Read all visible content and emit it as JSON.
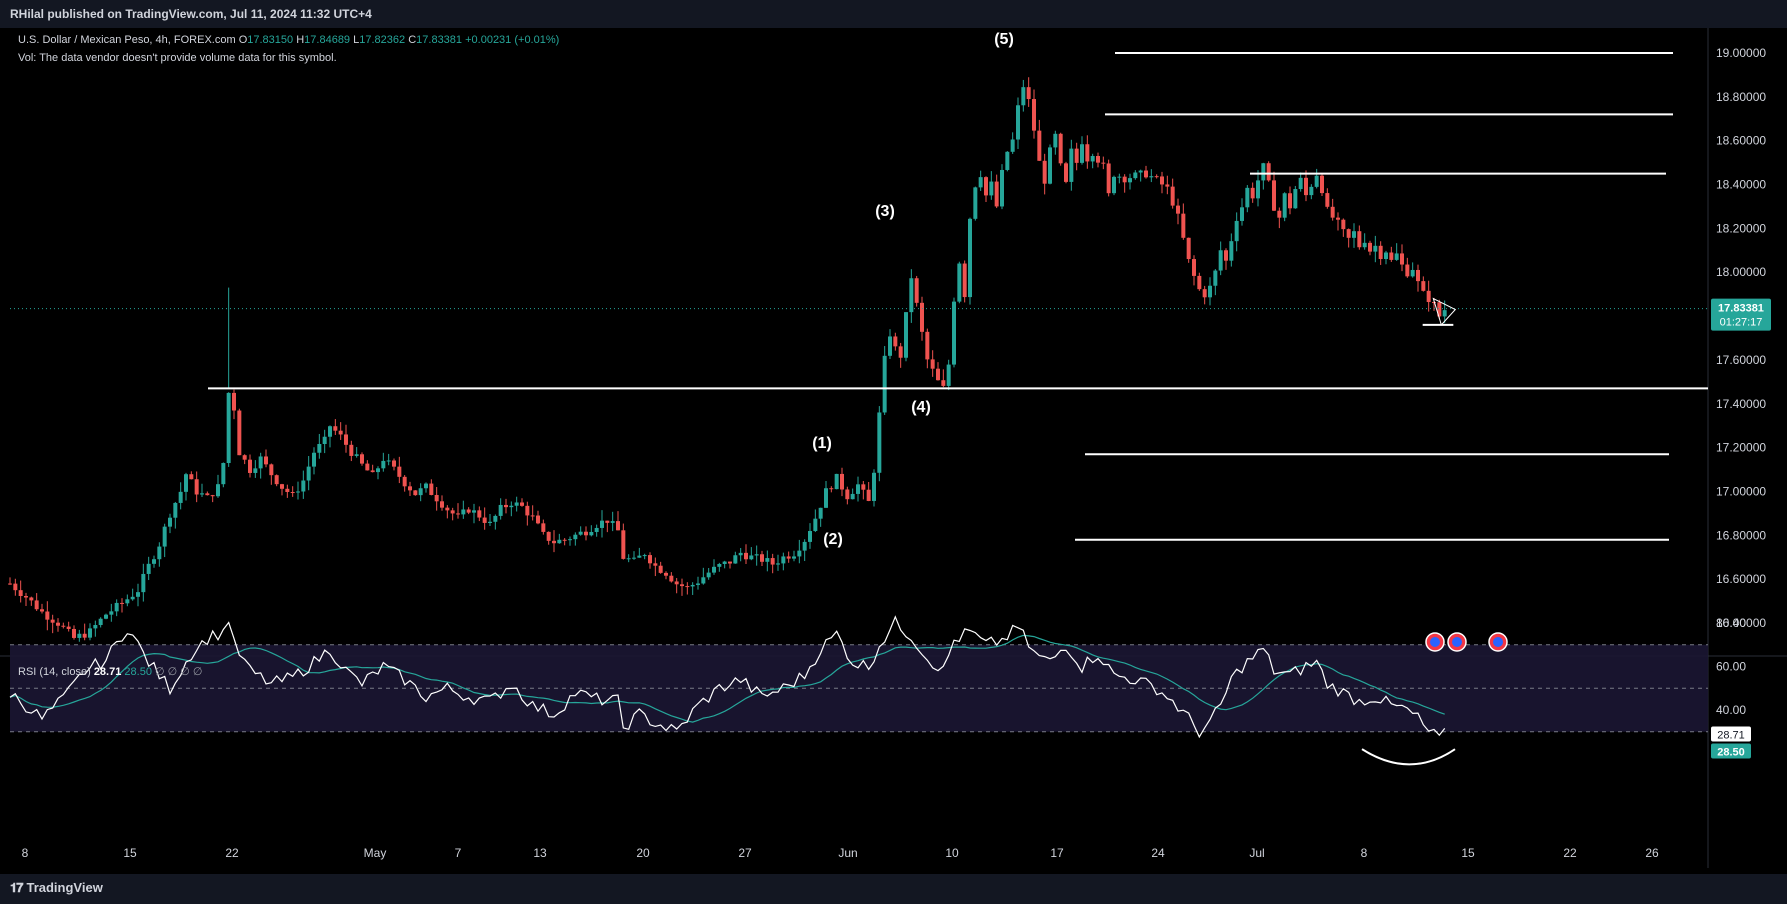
{
  "header": {
    "publisher": "RHilal published on TradingView.com, Jul 11, 2024 11:32 UTC+4"
  },
  "legend": {
    "symbol": "U.S. Dollar / Mexican Peso, 4h, FOREX.com",
    "o_label": "O",
    "o_value": "17.83150",
    "h_label": "H",
    "h_value": "17.84689",
    "l_label": "L",
    "l_value": "17.82362",
    "c_label": "C",
    "c_value": "17.83381",
    "change": "+0.00231 (+0.01%)",
    "vol_note": "Vol: The data vendor doesn't provide volume data for this symbol."
  },
  "rsi_legend": {
    "label": "RSI (14, close)",
    "value": "28.71",
    "ma_value": "28.50",
    "empty": "∅ ∅ ∅ ∅"
  },
  "last_price": {
    "price": "17.83381",
    "countdown": "01:27:17"
  },
  "rsi_tags": {
    "rsi": "28.71",
    "ma": "28.50"
  },
  "footer": {
    "brand": "TradingView"
  },
  "colors": {
    "up": "#26a69a",
    "down": "#ef5350",
    "line": "#ffffff",
    "rsi_line": "#ffffff",
    "rsi_ma": "#26a69a",
    "price_tag": "#26a69a",
    "rsi_band": "#1b1633"
  },
  "icons": [
    "tradingview-logo-icon",
    "us-flag-event-icon"
  ],
  "chart_data": {
    "type": "candlestick",
    "title": "U.S. Dollar / Mexican Peso, 4h, FOREX.com",
    "ylim": [
      16.26,
      19.2
    ],
    "y_ticks": [
      "19.00000",
      "18.80000",
      "18.60000",
      "18.40000",
      "18.20000",
      "18.00000",
      "17.60000",
      "17.40000",
      "17.20000",
      "17.00000",
      "16.80000",
      "16.60000",
      "16.40000"
    ],
    "x_ticks": [
      "8",
      "15",
      "22",
      "May",
      "7",
      "13",
      "20",
      "27",
      "Jun",
      "10",
      "17",
      "24",
      "Jul",
      "8",
      "15",
      "22",
      "26"
    ],
    "close_path": [
      [
        0,
        16.58
      ],
      [
        3,
        16.52
      ],
      [
        6,
        16.45
      ],
      [
        9,
        16.4
      ],
      [
        12,
        16.33
      ],
      [
        15,
        16.36
      ],
      [
        18,
        16.44
      ],
      [
        21,
        16.49
      ],
      [
        24,
        16.55
      ],
      [
        26,
        16.66
      ],
      [
        28,
        16.76
      ],
      [
        30,
        16.9
      ],
      [
        32,
        17.0
      ],
      [
        33,
        17.08
      ],
      [
        35,
        17.0
      ],
      [
        37,
        16.97
      ],
      [
        39,
        17.02
      ],
      [
        40,
        17.13
      ],
      [
        41,
        17.45
      ],
      [
        42,
        17.38
      ],
      [
        43,
        17.18
      ],
      [
        45,
        17.1
      ],
      [
        47,
        17.15
      ],
      [
        49,
        17.08
      ],
      [
        51,
        17.02
      ],
      [
        53,
        16.98
      ],
      [
        55,
        17.05
      ],
      [
        57,
        17.18
      ],
      [
        59,
        17.23
      ],
      [
        60,
        17.3
      ],
      [
        62,
        17.25
      ],
      [
        64,
        17.18
      ],
      [
        66,
        17.12
      ],
      [
        68,
        17.07
      ],
      [
        70,
        17.15
      ],
      [
        72,
        17.1
      ],
      [
        74,
        17.04
      ],
      [
        76,
        16.99
      ],
      [
        78,
        17.02
      ],
      [
        80,
        16.97
      ],
      [
        82,
        16.92
      ],
      [
        84,
        16.88
      ],
      [
        86,
        16.92
      ],
      [
        88,
        16.89
      ],
      [
        90,
        16.85
      ],
      [
        92,
        16.92
      ],
      [
        94,
        16.95
      ],
      [
        96,
        16.93
      ],
      [
        98,
        16.88
      ],
      [
        100,
        16.8
      ],
      [
        102,
        16.77
      ],
      [
        104,
        16.78
      ],
      [
        106,
        16.8
      ],
      [
        108,
        16.82
      ],
      [
        110,
        16.85
      ],
      [
        112,
        16.87
      ],
      [
        114,
        16.82
      ],
      [
        115,
        16.7
      ],
      [
        117,
        16.68
      ],
      [
        119,
        16.72
      ],
      [
        121,
        16.66
      ],
      [
        123,
        16.63
      ],
      [
        125,
        16.58
      ],
      [
        127,
        16.56
      ],
      [
        129,
        16.59
      ],
      [
        131,
        16.63
      ],
      [
        133,
        16.66
      ],
      [
        135,
        16.68
      ],
      [
        137,
        16.72
      ],
      [
        139,
        16.7
      ],
      [
        141,
        16.69
      ],
      [
        143,
        16.67
      ],
      [
        145,
        16.7
      ],
      [
        147,
        16.72
      ],
      [
        149,
        16.78
      ],
      [
        151,
        16.88
      ],
      [
        153,
        17.0
      ],
      [
        155,
        17.06
      ],
      [
        157,
        16.98
      ],
      [
        159,
        17.03
      ],
      [
        161,
        16.95
      ],
      [
        162,
        17.1
      ],
      [
        163,
        17.35
      ],
      [
        164,
        17.6
      ],
      [
        165,
        17.72
      ],
      [
        166,
        17.65
      ],
      [
        167,
        17.62
      ],
      [
        168,
        17.8
      ],
      [
        169,
        17.98
      ],
      [
        170,
        17.85
      ],
      [
        171,
        17.72
      ],
      [
        172,
        17.6
      ],
      [
        173,
        17.55
      ],
      [
        174,
        17.5
      ],
      [
        175,
        17.47
      ],
      [
        176,
        17.58
      ],
      [
        177,
        17.88
      ],
      [
        178,
        18.05
      ],
      [
        179,
        17.9
      ],
      [
        180,
        18.25
      ],
      [
        181,
        18.4
      ],
      [
        182,
        18.45
      ],
      [
        183,
        18.35
      ],
      [
        184,
        18.4
      ],
      [
        185,
        18.3
      ],
      [
        186,
        18.45
      ],
      [
        187,
        18.55
      ],
      [
        188,
        18.6
      ],
      [
        189,
        18.75
      ],
      [
        190,
        18.85
      ],
      [
        191,
        18.78
      ],
      [
        192,
        18.65
      ],
      [
        193,
        18.5
      ],
      [
        194,
        18.42
      ],
      [
        195,
        18.55
      ],
      [
        196,
        18.62
      ],
      [
        197,
        18.48
      ],
      [
        198,
        18.4
      ],
      [
        199,
        18.55
      ],
      [
        200,
        18.5
      ],
      [
        201,
        18.6
      ],
      [
        202,
        18.52
      ],
      [
        203,
        18.55
      ],
      [
        205,
        18.48
      ],
      [
        206,
        18.35
      ],
      [
        207,
        18.45
      ],
      [
        209,
        18.43
      ],
      [
        211,
        18.44
      ],
      [
        213,
        18.45
      ],
      [
        215,
        18.42
      ],
      [
        217,
        18.38
      ],
      [
        218,
        18.32
      ],
      [
        219,
        18.25
      ],
      [
        220,
        18.15
      ],
      [
        221,
        18.05
      ],
      [
        222,
        17.98
      ],
      [
        223,
        17.92
      ],
      [
        224,
        17.9
      ],
      [
        225,
        17.93
      ],
      [
        226,
        18.0
      ],
      [
        227,
        18.1
      ],
      [
        228,
        18.05
      ],
      [
        229,
        18.15
      ],
      [
        230,
        18.25
      ],
      [
        231,
        18.3
      ],
      [
        232,
        18.38
      ],
      [
        233,
        18.35
      ],
      [
        234,
        18.42
      ],
      [
        235,
        18.48
      ],
      [
        236,
        18.4
      ],
      [
        237,
        18.3
      ],
      [
        238,
        18.25
      ],
      [
        239,
        18.35
      ],
      [
        240,
        18.3
      ],
      [
        241,
        18.38
      ],
      [
        242,
        18.42
      ],
      [
        243,
        18.35
      ],
      [
        244,
        18.4
      ],
      [
        245,
        18.45
      ],
      [
        246,
        18.38
      ],
      [
        247,
        18.28
      ],
      [
        248,
        18.25
      ],
      [
        249,
        18.22
      ],
      [
        250,
        18.18
      ],
      [
        251,
        18.15
      ],
      [
        252,
        18.18
      ],
      [
        253,
        18.12
      ],
      [
        254,
        18.15
      ],
      [
        255,
        18.1
      ],
      [
        256,
        18.12
      ],
      [
        257,
        18.08
      ],
      [
        258,
        18.1
      ],
      [
        259,
        18.05
      ],
      [
        260,
        18.08
      ],
      [
        261,
        18.03
      ],
      [
        262,
        18.0
      ],
      [
        263,
        18.02
      ],
      [
        264,
        17.95
      ],
      [
        265,
        17.9
      ],
      [
        266,
        17.88
      ],
      [
        267,
        17.85
      ],
      [
        268,
        17.8
      ],
      [
        269,
        17.83
      ]
    ],
    "rsi_ylim": [
      10,
      90
    ],
    "rsi_ticks": [
      "80.00",
      "60.00",
      "40.00"
    ],
    "rsi_path": [
      [
        0,
        48
      ],
      [
        6,
        36
      ],
      [
        10,
        45
      ],
      [
        14,
        58
      ],
      [
        18,
        63
      ],
      [
        22,
        78
      ],
      [
        26,
        62
      ],
      [
        30,
        50
      ],
      [
        34,
        66
      ],
      [
        37,
        73
      ],
      [
        40,
        76
      ],
      [
        41,
        82
      ],
      [
        42,
        70
      ],
      [
        45,
        58
      ],
      [
        49,
        52
      ],
      [
        53,
        55
      ],
      [
        57,
        62
      ],
      [
        60,
        68
      ],
      [
        63,
        58
      ],
      [
        66,
        52
      ],
      [
        70,
        60
      ],
      [
        74,
        54
      ],
      [
        78,
        46
      ],
      [
        82,
        50
      ],
      [
        86,
        46
      ],
      [
        90,
        44
      ],
      [
        94,
        52
      ],
      [
        98,
        42
      ],
      [
        102,
        38
      ],
      [
        106,
        48
      ],
      [
        110,
        45
      ],
      [
        114,
        44
      ],
      [
        115,
        32
      ],
      [
        118,
        38
      ],
      [
        121,
        34
      ],
      [
        125,
        30
      ],
      [
        129,
        42
      ],
      [
        133,
        50
      ],
      [
        137,
        54
      ],
      [
        141,
        46
      ],
      [
        145,
        50
      ],
      [
        149,
        56
      ],
      [
        152,
        68
      ],
      [
        155,
        75
      ],
      [
        158,
        62
      ],
      [
        161,
        60
      ],
      [
        163,
        70
      ],
      [
        166,
        80
      ],
      [
        169,
        74
      ],
      [
        172,
        64
      ],
      [
        175,
        58
      ],
      [
        177,
        72
      ],
      [
        180,
        76
      ],
      [
        183,
        70
      ],
      [
        186,
        72
      ],
      [
        189,
        78
      ],
      [
        192,
        66
      ],
      [
        195,
        62
      ],
      [
        198,
        70
      ],
      [
        201,
        60
      ],
      [
        204,
        66
      ],
      [
        207,
        56
      ],
      [
        211,
        54
      ],
      [
        215,
        50
      ],
      [
        218,
        44
      ],
      [
        221,
        36
      ],
      [
        223,
        30
      ],
      [
        225,
        34
      ],
      [
        227,
        42
      ],
      [
        229,
        54
      ],
      [
        231,
        60
      ],
      [
        233,
        64
      ],
      [
        235,
        68
      ],
      [
        237,
        58
      ],
      [
        240,
        56
      ],
      [
        243,
        60
      ],
      [
        245,
        62
      ],
      [
        247,
        52
      ],
      [
        250,
        48
      ],
      [
        253,
        44
      ],
      [
        256,
        46
      ],
      [
        259,
        42
      ],
      [
        262,
        40
      ],
      [
        264,
        36
      ],
      [
        266,
        30
      ],
      [
        268,
        27
      ],
      [
        269,
        28.7
      ]
    ],
    "levels": [
      19.0,
      18.72,
      18.45,
      17.47,
      17.17,
      16.78
    ],
    "wave_labels": [
      "(1)",
      "(2)",
      "(3)",
      "(4)",
      "(5)"
    ],
    "last_price": 17.83381
  }
}
